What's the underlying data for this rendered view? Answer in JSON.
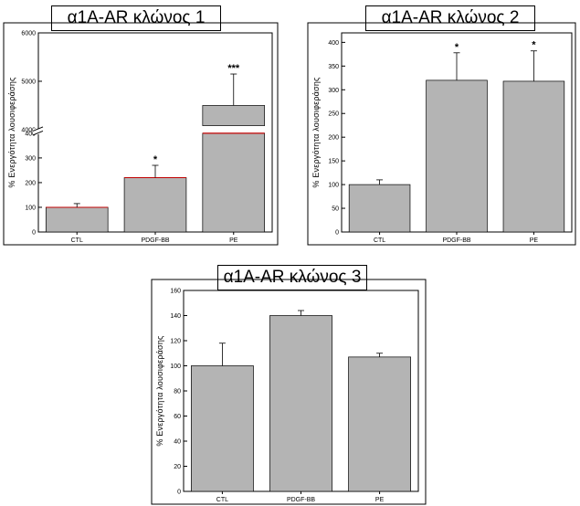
{
  "chart_data": [
    {
      "type": "bar",
      "title": "α1A-AR κλώνος 1",
      "ylabel": "% Ενεργότητα λουσιφεράσης",
      "xlabel": "",
      "categories": [
        "CTL",
        "PDGF-BB",
        "PE"
      ],
      "values": [
        100,
        220,
        4500
      ],
      "errors": [
        15,
        50,
        650
      ],
      "significance": [
        "",
        "*",
        "***"
      ],
      "y_break": {
        "lower": [
          0,
          400
        ],
        "upper": [
          4000,
          6000
        ]
      },
      "yticks_lower": [
        "0",
        "100",
        "200",
        "300",
        "400"
      ],
      "yticks_upper": [
        "4000",
        "5000",
        "6000"
      ],
      "bar_color": "#b4b4b4",
      "break_edge_color": "#c00000"
    },
    {
      "type": "bar",
      "title": "α1A-AR κλώνος 2",
      "ylabel": "% Ενεργότητα λουσιφεράσης",
      "xlabel": "",
      "categories": [
        "CTL",
        "PDGF-BB",
        "PE"
      ],
      "values": [
        100,
        320,
        318
      ],
      "errors": [
        10,
        58,
        64
      ],
      "significance": [
        "",
        "*",
        "*"
      ],
      "ylim": [
        0,
        420
      ],
      "yticks": [
        "0",
        "50",
        "100",
        "150",
        "200",
        "250",
        "300",
        "350",
        "400"
      ],
      "bar_color": "#b4b4b4"
    },
    {
      "type": "bar",
      "title": "α1A-AR κλώνος 3",
      "ylabel": "% Ενεργότητα λουσιφεράσης",
      "xlabel": "",
      "categories": [
        "CTL",
        "PDGF-BB",
        "PE"
      ],
      "values": [
        100,
        140,
        107
      ],
      "errors": [
        18,
        4,
        3
      ],
      "significance": [
        "",
        "",
        ""
      ],
      "ylim": [
        0,
        160
      ],
      "yticks": [
        "0",
        "20",
        "40",
        "60",
        "80",
        "100",
        "120",
        "140",
        "160"
      ],
      "bar_color": "#b4b4b4"
    }
  ]
}
